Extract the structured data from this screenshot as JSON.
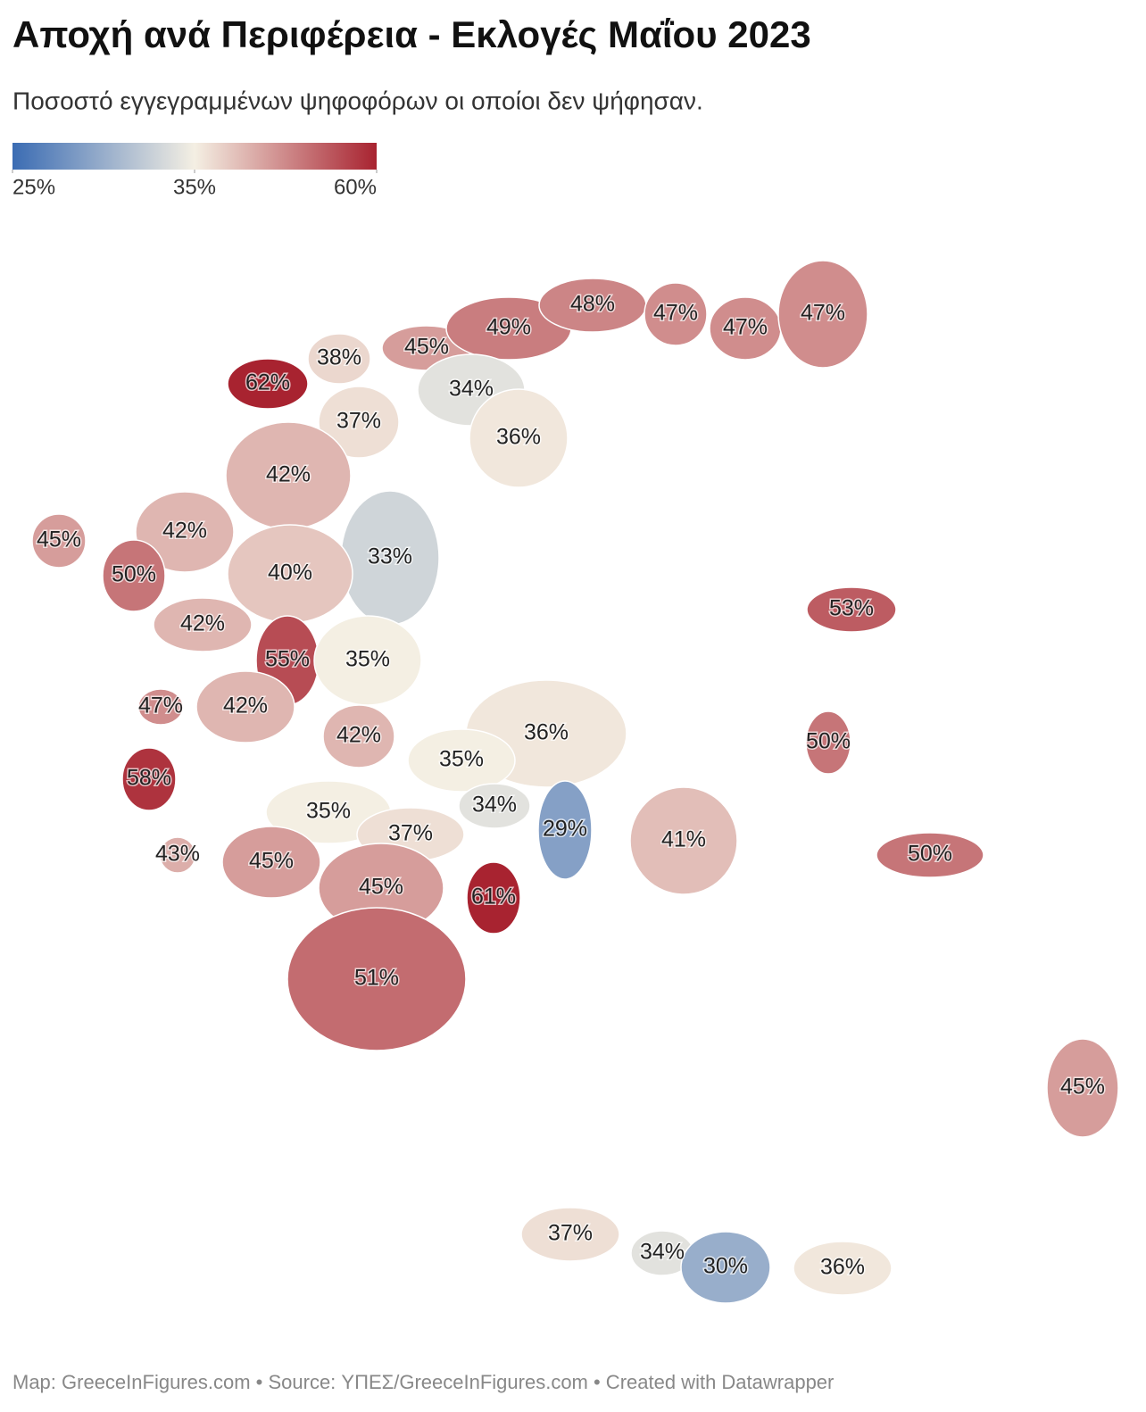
{
  "chart_data": {
    "type": "choropleth",
    "title": "Αποχή ανά Περιφέρεια - Εκλογές Μαΐου 2023",
    "subtitle": "Ποσοστό εγγεγραμμένων ψηφοφόρων οι οποίοι δεν ψήφησαν.",
    "colorscale": {
      "colors": [
        "#3b6cb3",
        "#f4efe3",
        "#a82330"
      ],
      "ticks": [
        {
          "value": 25,
          "label": "25%"
        },
        {
          "value": 35,
          "label": "35%"
        },
        {
          "value": 60,
          "label": "60%"
        }
      ]
    },
    "values": [
      62,
      38,
      45,
      49,
      48,
      47,
      47,
      47,
      34,
      37,
      36,
      42,
      45,
      42,
      33,
      50,
      40,
      53,
      42,
      55,
      35,
      47,
      42,
      42,
      36,
      50,
      35,
      58,
      34,
      35,
      29,
      37,
      41,
      43,
      45,
      50,
      45,
      61,
      51,
      45,
      37,
      34,
      30,
      36
    ],
    "value_labels": [
      "62%",
      "38%",
      "45%",
      "49%",
      "48%",
      "47%",
      "47%",
      "47%",
      "34%",
      "37%",
      "36%",
      "42%",
      "45%",
      "42%",
      "33%",
      "50%",
      "40%",
      "53%",
      "42%",
      "55%",
      "35%",
      "47%",
      "42%",
      "42%",
      "36%",
      "50%",
      "35%",
      "58%",
      "34%",
      "35%",
      "29%",
      "37%",
      "41%",
      "43%",
      "45%",
      "50%",
      "45%",
      "61%",
      "51%",
      "45%",
      "37%",
      "34%",
      "30%",
      "36%"
    ],
    "source": "Map: GreeceInFigures.com • Source: ΥΠΕΣ/GreeceInFigures.com • Created with Datawrapper"
  }
}
